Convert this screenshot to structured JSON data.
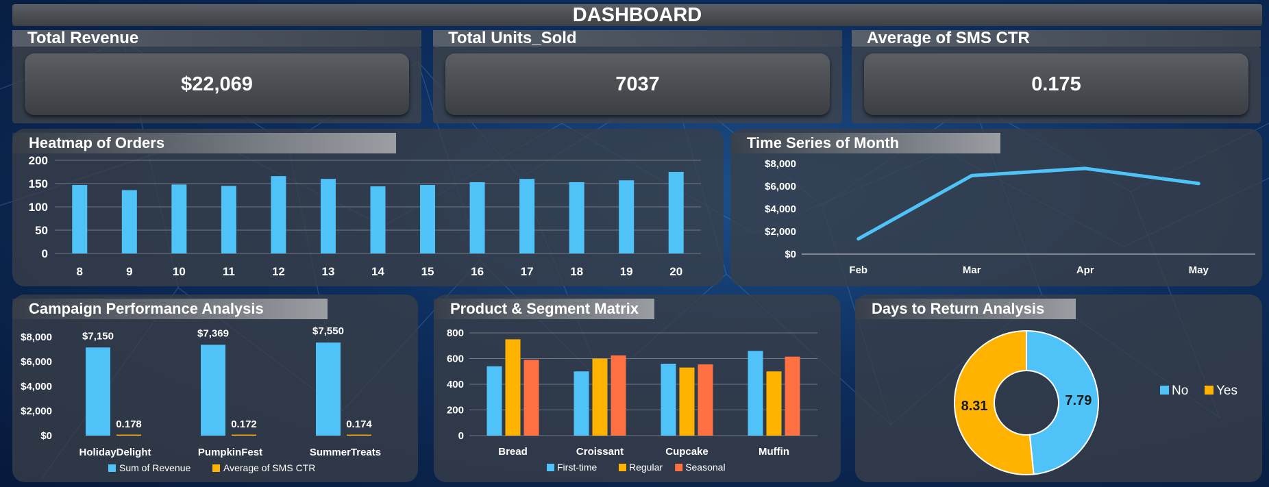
{
  "title": "DASHBOARD",
  "kpis": [
    {
      "label": "Total Revenue",
      "value": "$22,069"
    },
    {
      "label": "Total Units_Sold",
      "value": "7037"
    },
    {
      "label": "Average of SMS CTR",
      "value": "0.175"
    }
  ],
  "colors": {
    "blue": "#4fc3f7",
    "orange": "#ffb300",
    "red": "#ff7043"
  },
  "chart_data": [
    {
      "title": "Heatmap of Orders",
      "type": "bar",
      "categories": [
        "8",
        "9",
        "10",
        "11",
        "12",
        "13",
        "14",
        "15",
        "16",
        "17",
        "18",
        "19",
        "20"
      ],
      "values": [
        147,
        136,
        148,
        145,
        166,
        160,
        144,
        147,
        153,
        160,
        153,
        157,
        175
      ],
      "ylim": [
        0,
        200
      ],
      "yticks": [
        "0",
        "50",
        "100",
        "150",
        "200"
      ],
      "grid": true
    },
    {
      "title": "Time Series of Month",
      "type": "line",
      "categories": [
        "Feb",
        "Mar",
        "Apr",
        "May"
      ],
      "values": [
        1350,
        6950,
        7580,
        6250
      ],
      "ylim": [
        0,
        8000
      ],
      "yticks": [
        "$0",
        "$2,000",
        "$4,000",
        "$6,000",
        "$8,000"
      ]
    },
    {
      "title": "Campaign Performance Analysis",
      "type": "bar",
      "categories": [
        "HolidayDelight",
        "PumpkinFest",
        "SummerTreats"
      ],
      "series": [
        {
          "name": "Sum of Revenue",
          "values": [
            7150,
            7369,
            7550
          ],
          "labels": [
            "$7,150",
            "$7,369",
            "$7,550"
          ]
        },
        {
          "name": "Average of SMS CTR",
          "values": [
            0.178,
            0.172,
            0.174
          ],
          "labels": [
            "0.178",
            "0.172",
            "0.174"
          ]
        }
      ],
      "ylim": [
        0,
        8000
      ],
      "yticks": [
        "$0",
        "$2,000",
        "$4,000",
        "$6,000",
        "$8,000"
      ],
      "legend": "bottom"
    },
    {
      "title": "Product & Segment Matrix",
      "type": "bar",
      "categories": [
        "Bread",
        "Croissant",
        "Cupcake",
        "Muffin"
      ],
      "series": [
        {
          "name": "First-time",
          "values": [
            540,
            500,
            560,
            660
          ]
        },
        {
          "name": "Regular",
          "values": [
            750,
            600,
            530,
            500
          ]
        },
        {
          "name": "Seasonal",
          "values": [
            590,
            625,
            555,
            615
          ]
        }
      ],
      "ylim": [
        0,
        800
      ],
      "yticks": [
        "0",
        "200",
        "400",
        "600",
        "800"
      ],
      "grid": true,
      "legend": "bottom"
    },
    {
      "title": "Days to Return Analysis",
      "type": "pie",
      "categories": [
        "No",
        "Yes"
      ],
      "values": [
        7.79,
        8.31
      ],
      "labels": [
        "7.79",
        "8.31"
      ],
      "legend": "right"
    }
  ]
}
